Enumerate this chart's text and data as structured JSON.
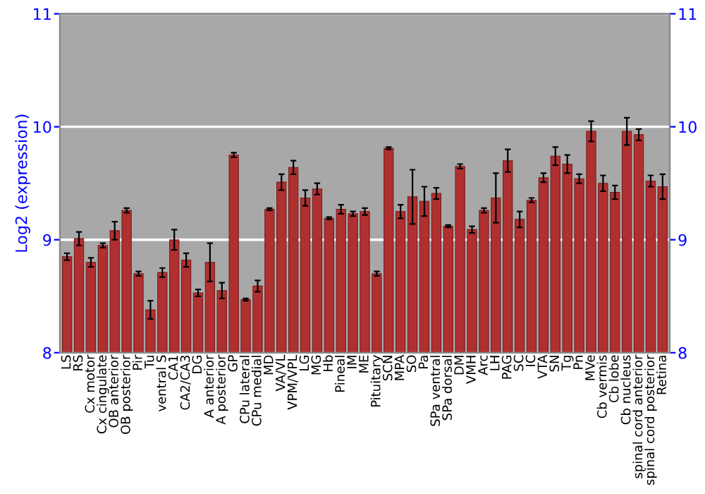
{
  "chart_data": {
    "type": "bar",
    "ylabel": "Log2 (expression)",
    "categories": [
      "LS",
      "RS",
      "Cx motor",
      "Cx cingulate",
      "OB anterior",
      "OB posterior",
      "Pir",
      "Tu",
      "ventral S",
      "CA1",
      "CA2/CA3",
      "DG",
      "A anterior",
      "A posterior",
      "GP",
      "CPu lateral",
      "CPu medial",
      "MD",
      "VA/VL",
      "VPM/VPL",
      "LG",
      "MG",
      "Hb",
      "Pineal",
      "IM",
      "ME",
      "Pituitary",
      "SCN",
      "MPA",
      "SO",
      "Pa",
      "SPa ventral",
      "SPa dorsal",
      "DM",
      "VMH",
      "Arc",
      "LH",
      "PAG",
      "SC",
      "IC",
      "VTA",
      "SN",
      "Tg",
      "Pn",
      "MVe",
      "Cb vermis",
      "Cb lobe",
      "Cb nucleus",
      "spinal cord anterior",
      "spinal cord posterior",
      "Retina"
    ],
    "series": [
      {
        "color": "#b03030",
        "values": [
          8.85,
          9.01,
          8.8,
          8.95,
          9.08,
          9.26,
          8.7,
          8.38,
          8.71,
          9.0,
          8.82,
          8.53,
          8.8,
          8.55,
          9.75,
          8.47,
          8.59,
          9.27,
          9.51,
          9.64,
          9.37,
          9.45,
          9.19,
          9.27,
          9.23,
          9.25,
          8.7,
          9.81,
          9.25,
          9.38,
          9.34,
          9.41,
          9.12,
          9.65,
          9.09,
          9.26,
          9.37,
          9.7,
          9.18,
          9.35,
          9.55,
          9.74,
          9.67,
          9.54,
          9.96,
          9.5,
          9.42,
          9.96,
          9.93,
          9.52,
          9.47
        ],
        "errors": [
          0.03,
          0.06,
          0.04,
          0.02,
          0.08,
          0.02,
          0.02,
          0.08,
          0.04,
          0.09,
          0.06,
          0.03,
          0.17,
          0.07,
          0.02,
          0.01,
          0.05,
          0.01,
          0.07,
          0.06,
          0.07,
          0.05,
          0.01,
          0.04,
          0.02,
          0.03,
          0.02,
          0.01,
          0.06,
          0.24,
          0.13,
          0.05,
          0.01,
          0.02,
          0.03,
          0.02,
          0.22,
          0.1,
          0.07,
          0.02,
          0.04,
          0.08,
          0.08,
          0.04,
          0.09,
          0.07,
          0.06,
          0.12,
          0.05,
          0.05,
          0.11
        ]
      }
    ],
    "ylim": [
      8,
      11
    ],
    "yticks": [
      8,
      9,
      10,
      11
    ],
    "y2lim": [
      8,
      11
    ],
    "y2ticks": [
      8,
      9,
      10,
      11
    ],
    "grid": "y"
  }
}
